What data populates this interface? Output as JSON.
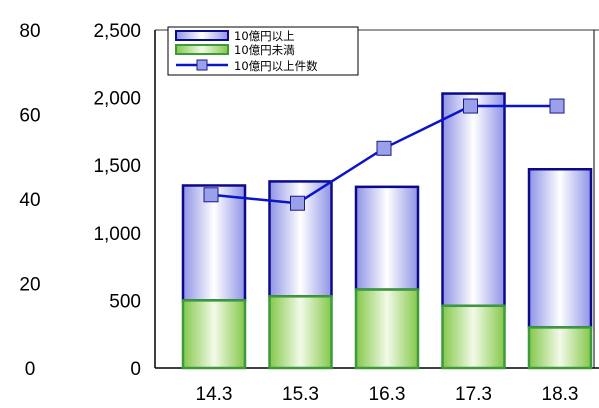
{
  "chart_data": {
    "type": "bar",
    "categories": [
      "14.3",
      "15.3",
      "16.3",
      "17.3",
      "18.3"
    ],
    "series": [
      {
        "name": "10億円未満",
        "kind": "stacked-bar",
        "axis": "left",
        "values": [
          500,
          530,
          580,
          460,
          300
        ],
        "color": "#8fcf56"
      },
      {
        "name": "10億円以上",
        "kind": "stacked-bar",
        "axis": "left",
        "values": [
          850,
          850,
          760,
          1570,
          1170
        ],
        "color": "#b0b4ec"
      },
      {
        "name": "10億円以上件数",
        "kind": "line",
        "axis": "right-outer",
        "values": [
          41,
          39,
          52,
          62,
          62
        ],
        "color": "#0a14c8"
      }
    ],
    "left_axis": {
      "ylim": [
        0,
        2500
      ],
      "ticks": [
        "0",
        "500",
        "1,000",
        "1,500",
        "2,000",
        "2,500"
      ]
    },
    "outer_axis": {
      "ylim": [
        0,
        80
      ],
      "ticks": [
        "0",
        "20",
        "40",
        "60",
        "80"
      ]
    },
    "legend": {
      "position": "top-left",
      "items": [
        "10億円以上",
        "10億円未満",
        "10億円以上件数"
      ]
    },
    "grid": false
  }
}
